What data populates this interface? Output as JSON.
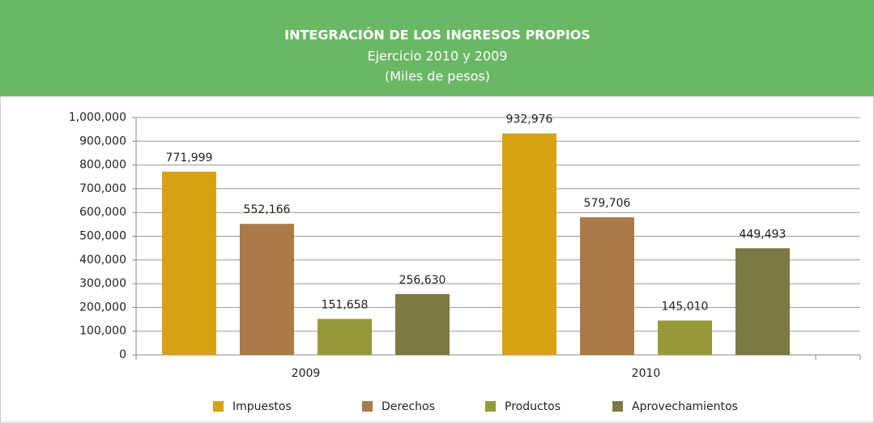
{
  "chart_data": {
    "type": "bar",
    "title": "INTEGRACIÓN DE LOS INGRESOS PROPIOS",
    "subtitle": "Ejercicio 2010 y 2009",
    "unit_label": "(Miles de pesos)",
    "categories": [
      "2009",
      "2010"
    ],
    "series": [
      {
        "name": "Impuestos",
        "color": "#d6a214",
        "values": [
          771999,
          932976
        ],
        "value_labels": [
          "771,999",
          "932,976"
        ]
      },
      {
        "name": "Derechos",
        "color": "#aa7b47",
        "values": [
          552166,
          579706
        ],
        "value_labels": [
          "552,166",
          "579,706"
        ]
      },
      {
        "name": "Productos",
        "color": "#979a3a",
        "values": [
          151658,
          145010
        ],
        "value_labels": [
          "151,658",
          "145,010"
        ]
      },
      {
        "name": "Aprovechamientos",
        "color": "#7b7a43",
        "values": [
          256630,
          449493
        ],
        "value_labels": [
          "256,630",
          "449,493"
        ]
      }
    ],
    "ylim": [
      0,
      1000000
    ],
    "yticks": [
      0,
      {
        "value": 100000,
        "label": "100,000"
      },
      {
        "value": 200000,
        "label": "200,000"
      },
      {
        "value": 300000,
        "label": "300,000"
      },
      {
        "value": 400000,
        "label": "400,000"
      },
      {
        "value": 500000,
        "label": "500,000"
      },
      {
        "value": 600000,
        "label": "600,000"
      },
      {
        "value": 700000,
        "label": "700,000"
      },
      {
        "value": 800000,
        "label": "800,000"
      },
      {
        "value": 900000,
        "label": "900,000"
      },
      {
        "value": 1000000,
        "label": "1,000,000"
      }
    ],
    "grid": true,
    "legend": "bottom",
    "header_color": "#6ab764"
  }
}
